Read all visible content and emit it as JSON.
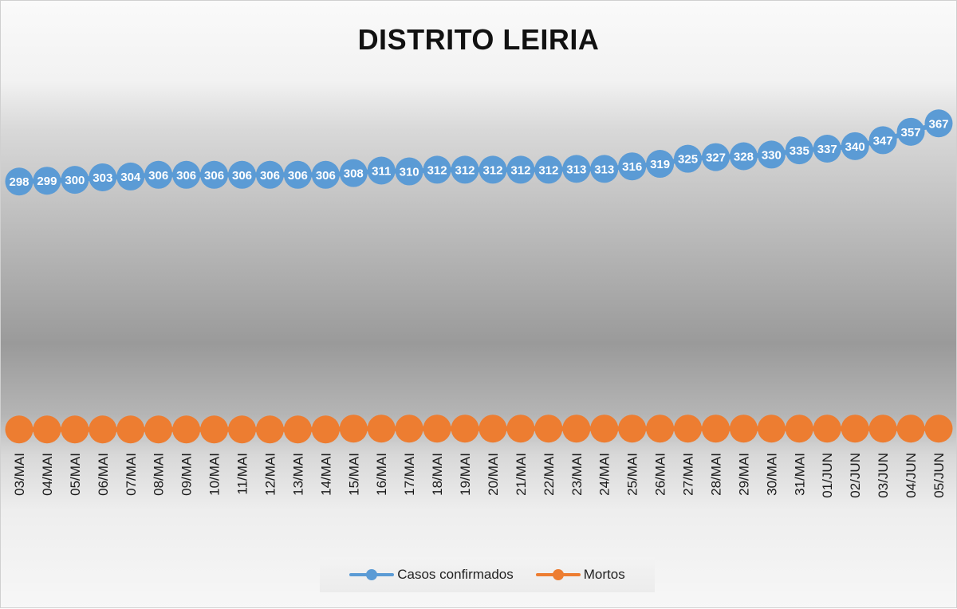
{
  "chart_data": {
    "type": "line",
    "title": "DISTRITO LEIRIA",
    "xlabel": "",
    "ylabel": "",
    "categories": [
      "03/MAI",
      "04/MAI",
      "05/MAI",
      "06/MAI",
      "07/MAI",
      "08/MAI",
      "09/MAI",
      "10/MAI",
      "11/MAI",
      "12/MAI",
      "13/MAI",
      "14/MAI",
      "15/MAI",
      "16/MAI",
      "17/MAI",
      "18/MAI",
      "19/MAI",
      "20/MAI",
      "21/MAI",
      "22/MAI",
      "23/MAI",
      "24/MAI",
      "25/MAI",
      "26/MAI",
      "27/MAI",
      "28/MAI",
      "29/MAI",
      "30/MAI",
      "31/MAI",
      "01/JUN",
      "02/JUN",
      "03/JUN",
      "04/JUN",
      "05/JUN"
    ],
    "series": [
      {
        "name": "Casos confirmados",
        "color": "#5b9bd5",
        "values": [
          298,
          299,
          300,
          303,
          304,
          306,
          306,
          306,
          306,
          306,
          306,
          306,
          308,
          311,
          310,
          312,
          312,
          312,
          312,
          312,
          313,
          313,
          316,
          319,
          325,
          327,
          328,
          330,
          335,
          337,
          340,
          347,
          357,
          367
        ],
        "data_labels": true
      },
      {
        "name": "Mortos",
        "color": "#ed7d31",
        "values": [
          4,
          4,
          4,
          4,
          4,
          4,
          4,
          4,
          4,
          4,
          4,
          4,
          5,
          5,
          5,
          5,
          5,
          5,
          5,
          5,
          5,
          5,
          5,
          5,
          5,
          5,
          5,
          5,
          5,
          5,
          5,
          5,
          5,
          5
        ],
        "data_labels": false
      }
    ],
    "ylim": [
      0,
      380
    ],
    "grid": false,
    "legend": "bottom",
    "value_axis_visible": false
  }
}
